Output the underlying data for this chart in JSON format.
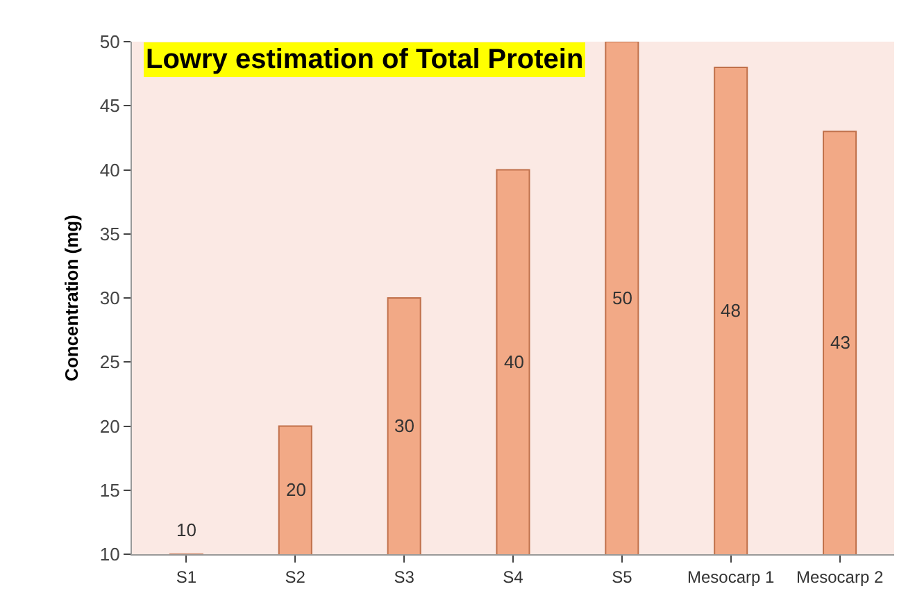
{
  "chart_data": {
    "type": "bar",
    "title": "Lowry estimation of Total Protein",
    "ylabel": "Concentration (mg)",
    "categories": [
      "S1",
      "S2",
      "S3",
      "S4",
      "S5",
      "Mesocarp 1",
      "Mesocarp 2"
    ],
    "values": [
      10,
      20,
      30,
      40,
      50,
      48,
      43
    ],
    "color": "#f2a986",
    "data_labels": true,
    "ylim": [
      10,
      50
    ],
    "yticks": [
      10,
      15,
      20,
      25,
      30,
      35,
      40,
      45,
      50
    ],
    "grid": false,
    "legend": false
  }
}
